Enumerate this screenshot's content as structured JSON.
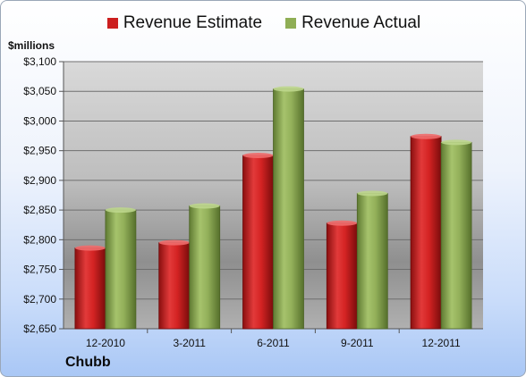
{
  "chart_data": {
    "type": "bar",
    "ylabel": "$millions",
    "categories": [
      "12-2010",
      "3-2011",
      "6-2011",
      "9-2011",
      "12-2011"
    ],
    "series": [
      {
        "name": "Revenue Estimate",
        "color": "#cc1f1f",
        "values": [
          2786,
          2795,
          2942,
          2828,
          2974
        ]
      },
      {
        "name": "Revenue Actual",
        "color": "#8fae55",
        "values": [
          2850,
          2857,
          3054,
          2878,
          2964
        ]
      }
    ],
    "ylim": [
      2650,
      3100
    ],
    "yticks": [
      "$2,650",
      "$2,700",
      "$2,750",
      "$2,800",
      "$2,850",
      "$2,900",
      "$2,950",
      "$3,000",
      "$3,050",
      "$3,100"
    ],
    "grid": true,
    "legend_position": "top"
  },
  "footer": {
    "company": "Chubb"
  }
}
